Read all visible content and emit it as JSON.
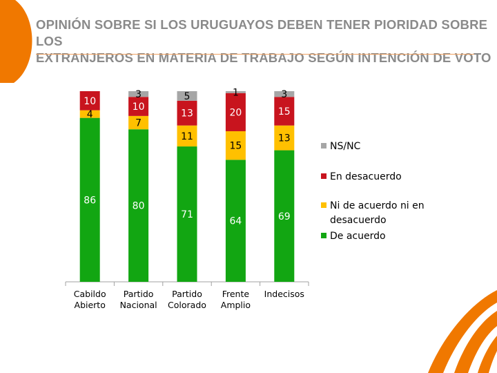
{
  "title": {
    "line1": "OPINIÓN SOBRE SI LOS URUGUAYOS DEBEN TENER PIORIDAD SOBRE LOS",
    "line2": "EXTRANJEROS EN MATERIA DE TRABAJO SEGÚN INTENCIÓN DE VOTO"
  },
  "colors": {
    "de_acuerdo": "#12a612",
    "ni_ni": "#ffc000",
    "en_desacuerdo": "#c8141e",
    "ns_nc": "#a6a6a6",
    "accent": "#f07800"
  },
  "chart_data": {
    "type": "bar",
    "stacked": true,
    "percent_scale": [
      0,
      100
    ],
    "categories": [
      [
        "Cabildo",
        "Abierto"
      ],
      [
        "Partido",
        "Nacional"
      ],
      [
        "Partido",
        "Colorado"
      ],
      [
        "Frente",
        "Amplio"
      ],
      [
        "Indecisos"
      ]
    ],
    "series": [
      {
        "name": "De acuerdo",
        "key": "de_acuerdo",
        "values": [
          86,
          80,
          71,
          64,
          69
        ]
      },
      {
        "name": "Ni de acuerdo ni en desacuerdo",
        "key": "ni_ni",
        "values": [
          4,
          7,
          11,
          15,
          13
        ]
      },
      {
        "name": "En desacuerdo",
        "key": "en_desacuerdo",
        "values": [
          10,
          10,
          13,
          20,
          15
        ]
      },
      {
        "name": "NS/NC",
        "key": "ns_nc",
        "values": [
          0,
          3,
          5,
          1,
          3
        ]
      }
    ],
    "legend": {
      "position": "right",
      "items": [
        {
          "key": "ns_nc",
          "lines": [
            "NS/NC"
          ]
        },
        {
          "key": "en_desacuerdo",
          "lines": [
            "En desacuerdo"
          ]
        },
        {
          "key": "ni_ni",
          "lines": [
            "Ni de acuerdo ni en",
            "desacuerdo"
          ]
        },
        {
          "key": "de_acuerdo",
          "lines": [
            "De acuerdo"
          ]
        }
      ]
    }
  }
}
